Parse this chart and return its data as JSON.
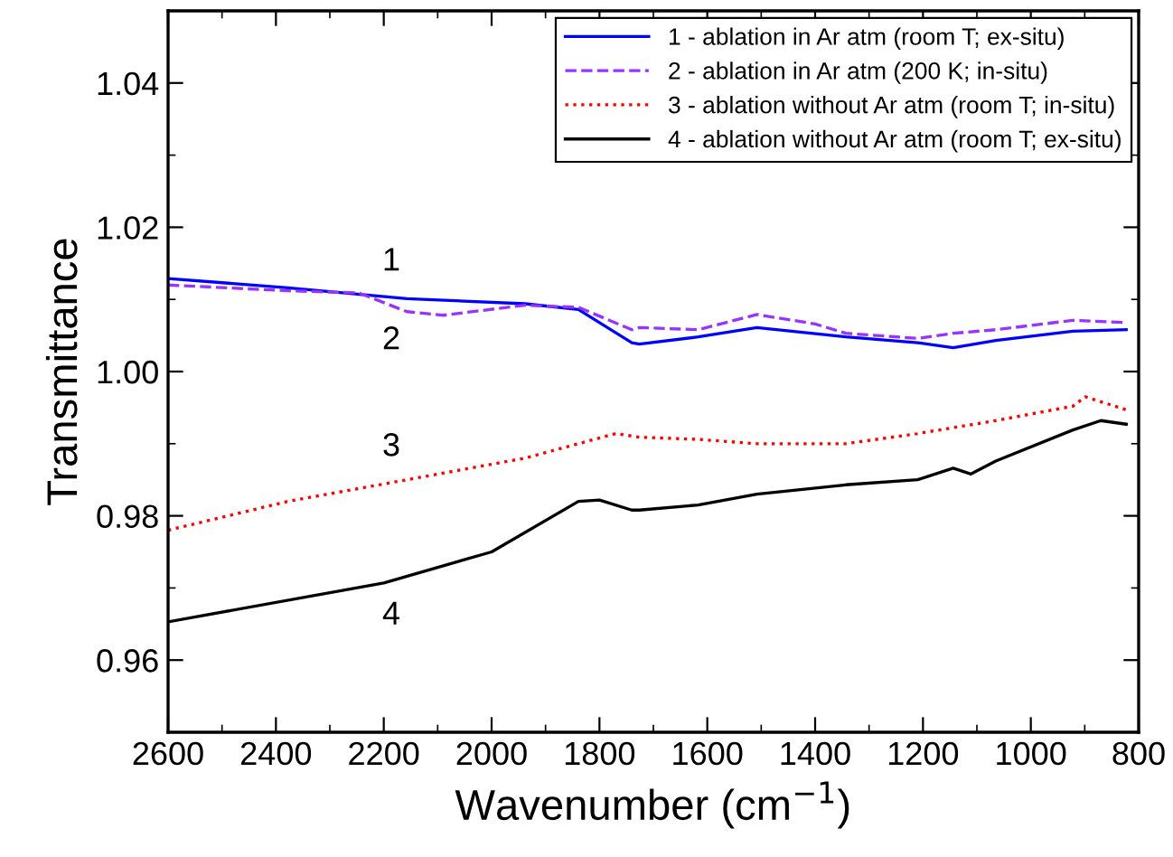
{
  "chart_data": {
    "type": "line",
    "xlabel": "Wavenumber (cm$^{−1}$)",
    "ylabel": "Transmittance",
    "xlim": [
      2600,
      800
    ],
    "ylim": [
      0.95,
      1.05
    ],
    "xticks": [
      2600,
      {
        "value": 2500,
        "label": null
      },
      2400,
      {
        "value": 2300,
        "label": null
      },
      2200,
      {
        "value": 2100,
        "label": null
      },
      2000,
      {
        "value": 1900,
        "label": null
      },
      1800,
      {
        "value": 1700,
        "label": null
      },
      1600,
      {
        "value": 1500,
        "label": null
      },
      1400,
      {
        "value": 1300,
        "label": null
      },
      1200,
      {
        "value": 1100,
        "label": null
      },
      1000,
      {
        "value": 900,
        "label": null
      },
      800
    ],
    "yticks": [
      {
        "value": 0.95,
        "label": null
      },
      {
        "value": 0.96,
        "label": "0.96"
      },
      {
        "value": 0.97,
        "label": null
      },
      {
        "value": 0.98,
        "label": "0.98"
      },
      {
        "value": 0.99,
        "label": null
      },
      {
        "value": 1.0,
        "label": "1.00"
      },
      {
        "value": 1.01,
        "label": null
      },
      {
        "value": 1.02,
        "label": "1.02"
      },
      {
        "value": 1.03,
        "label": null
      },
      {
        "value": 1.04,
        "label": "1.04"
      },
      {
        "value": 1.05,
        "label": null
      }
    ],
    "grid": false,
    "legend": "top right",
    "marker": "none",
    "series": [
      {
        "name": "1 - ablation in Ar atm (room T; ex-situ)",
        "color": "#0000ff",
        "line_style": "solid",
        "x": [
          2600,
          2378,
          2157,
          1938,
          1839,
          1740,
          1726,
          1617,
          1508,
          1343,
          1210,
          1144,
          1065,
          922,
          823
        ],
        "values": [
          1.0129,
          1.0116,
          1.0101,
          1.0094,
          1.0086,
          1.004,
          1.0038,
          1.0048,
          1.0061,
          1.0048,
          1.004,
          1.0033,
          1.0043,
          1.0056,
          1.0058
        ]
      },
      {
        "name": "2 - ablation in Ar atm (200 K; in-situ)",
        "color": "#9933ff",
        "line_style": "dashed",
        "x": [
          2600,
          2378,
          2246,
          2157,
          2090,
          1938,
          1839,
          1740,
          1726,
          1617,
          1508,
          1400,
          1343,
          1210,
          1144,
          1065,
          922,
          823
        ],
        "values": [
          1.012,
          1.0112,
          1.0109,
          1.0083,
          1.0078,
          1.0092,
          1.0089,
          1.0058,
          1.0061,
          1.0058,
          1.0079,
          1.0066,
          1.0053,
          1.0046,
          1.0053,
          1.0058,
          1.0071,
          1.0068
        ]
      },
      {
        "name": "3 - ablation without Ar atm (room T; in-situ)",
        "color": "#ff0000",
        "line_style": "dotted",
        "x": [
          2600,
          2378,
          2157,
          1938,
          1839,
          1770,
          1726,
          1617,
          1508,
          1343,
          1210,
          1065,
          922,
          899,
          823
        ],
        "values": [
          0.978,
          0.982,
          0.985,
          0.988,
          0.99,
          0.9914,
          0.9909,
          0.9906,
          0.99,
          0.99,
          0.9914,
          0.9932,
          0.9952,
          0.9965,
          0.9947
        ]
      },
      {
        "name": "4 - ablation without Ar atm (room T; ex-situ)",
        "color": "#000000",
        "line_style": "solid",
        "x": [
          2600,
          2200,
          2000,
          1839,
          1800,
          1740,
          1726,
          1617,
          1508,
          1343,
          1210,
          1144,
          1111,
          1065,
          922,
          870,
          823
        ],
        "values": [
          0.9653,
          0.9707,
          0.975,
          0.982,
          0.9822,
          0.9808,
          0.9808,
          0.9815,
          0.983,
          0.9843,
          0.985,
          0.9866,
          0.9858,
          0.9876,
          0.9919,
          0.9932,
          0.9927
        ]
      }
    ],
    "annotations": [
      "1",
      "2",
      "3",
      "4"
    ]
  }
}
